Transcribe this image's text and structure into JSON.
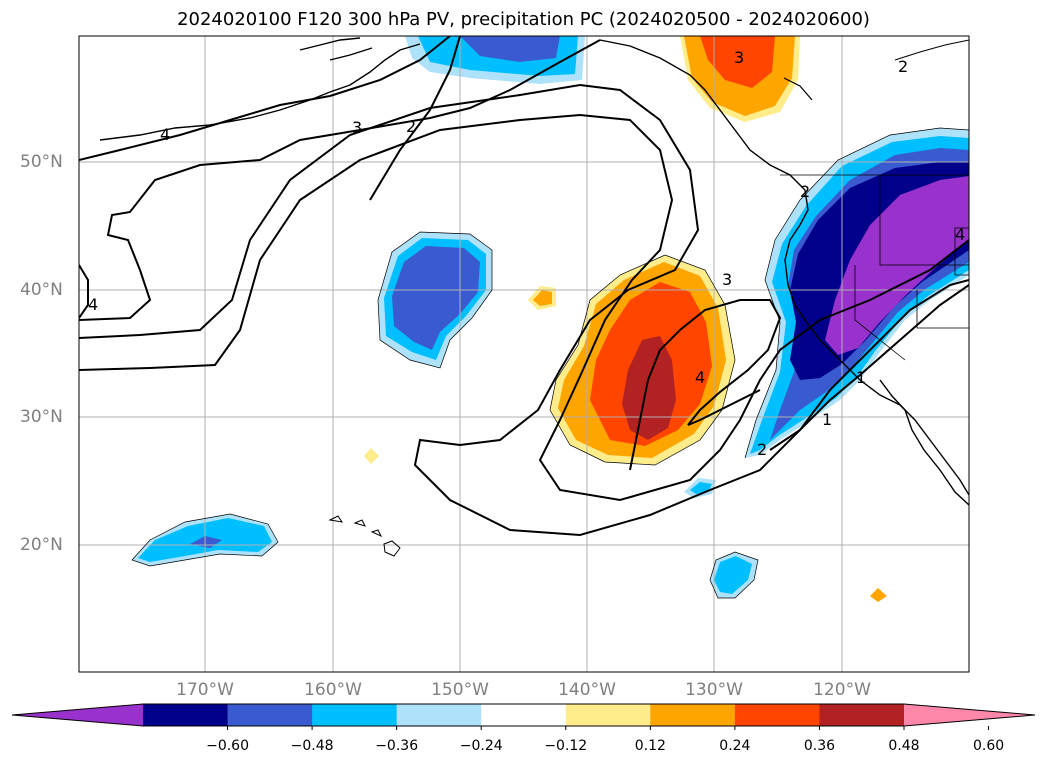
{
  "title": "2024020100 F120 300 hPa PV, precipitation PC (2024020500 - 2024020600)",
  "latitude_labels": [
    "50°N",
    "40°N",
    "30°N",
    "20°N"
  ],
  "longitude_labels": [
    "170°W",
    "160°W",
    "150°W",
    "140°W",
    "130°W",
    "120°W"
  ],
  "colorbar": {
    "tick_labels": [
      "−0.60",
      "−0.48",
      "−0.36",
      "−0.24",
      "−0.12",
      "0.12",
      "0.24",
      "0.36",
      "0.48",
      "0.60"
    ],
    "colors": [
      "#9932CC",
      "#00008B",
      "#3A5BCF",
      "#00BFFF",
      "#ADE2FA",
      "#FFFFFF",
      "#FFEC8B",
      "#FFA500",
      "#FF4500",
      "#B22222",
      "#FF88AA"
    ]
  },
  "pv_contour_labels": [
    "2",
    "3",
    "4",
    "2",
    "3",
    "4",
    "3",
    "4",
    "2",
    "1",
    "2",
    "1",
    "4"
  ]
}
